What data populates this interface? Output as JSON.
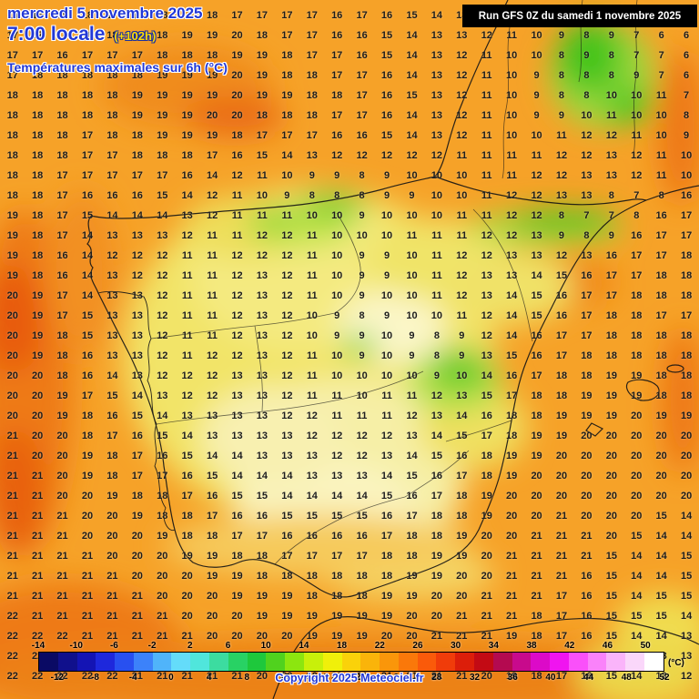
{
  "header": {
    "date_line": "mercredi 5 novembre 2025",
    "time_line": "7:00 locale",
    "offset_label": "(+102h)",
    "subtitle": "Températures maximales sur 6h (°C)",
    "run_info": "Run GFS 0Z du samedi 1 novembre 2025"
  },
  "footer": {
    "copyright": "Copyright 2025 Meteociel.fr",
    "unit_label": "(°C)"
  },
  "colorbar": {
    "min": -14,
    "max": 52,
    "top_ticks": [
      -14,
      -10,
      -6,
      -2,
      2,
      6,
      10,
      14,
      18,
      22,
      26,
      30,
      34,
      38,
      42,
      46,
      50
    ],
    "bottom_ticks": [
      -12,
      -8,
      -4,
      0,
      4,
      8,
      12,
      16,
      20,
      24,
      28,
      32,
      36,
      40,
      44,
      48,
      52
    ],
    "colors": [
      "#0a0a64",
      "#10108c",
      "#1414b4",
      "#1e28dc",
      "#2850f0",
      "#3c82fa",
      "#50b4fa",
      "#64dcfa",
      "#50e6dc",
      "#3cdca0",
      "#28d264",
      "#1ec83c",
      "#50d21e",
      "#8ce60f",
      "#c8f00a",
      "#f0f00a",
      "#fad20a",
      "#fab40a",
      "#fa960a",
      "#fa780a",
      "#fa5a0a",
      "#f03c0a",
      "#dc1e0a",
      "#c30a14",
      "#b40a50",
      "#c80a8c",
      "#dc0ac8",
      "#f014f0",
      "#fa50fa",
      "#fa82fa",
      "#fab4fa",
      "#fad7fa",
      "#ffffff"
    ]
  },
  "map": {
    "rows_y_start": 17,
    "row_step": 22,
    "cols": 28,
    "grid": [
      "18 18 18 18 17 18 18 19 18 17 17 17 17 16 17 16 15 14 13 13 12 11 10 9 8 8 7 6",
      "17 17 18 18 18 18 18 19 19 20 18 17 17 16 16 15 14 13 13 12 11 10 9 8 9 7 6 6",
      "17 17 16 17 17 17 18 18 18 19 19 18 17 17 16 15 14 13 12 11 10 10 8 9 8 7 7 6",
      "17 18 18 18 18 18 19 19 19 20 19 18 18 17 17 16 14 13 12 11 10 9 8 8 8 9 7 6",
      "18 18 18 18 18 19 19 19 19 20 19 19 18 18 17 16 15 13 12 11 10 9 8 8 10 10 11 7",
      "18 18 18 18 18 19 19 19 20 20 18 18 18 17 17 16 14 13 12 11 10 9 9 10 11 10 10 8",
      "18 18 18 17 18 18 19 19 19 18 17 17 17 16 16 15 14 13 12 11 10 10 11 12 12 11 10 9",
      "18 18 18 17 17 18 18 18 17 16 15 14 13 12 12 12 12 12 11 11 11 11 12 12 13 12 11 10",
      "18 18 17 17 17 17 17 16 14 12 11 10 9 9 8 9 10 10 10 11 11 12 12 13 13 12 11 10",
      "18 18 17 16 16 16 15 14 12 11 10 9 8 8 8 9 9 10 10 11 12 12 13 13 8 7 8 16",
      "19 18 17 15 14 14 14 13 12 11 11 11 10 10 9 10 10 10 11 11 12 12 8 7 7 8 16 17",
      "19 18 17 14 13 13 13 12 11 11 12 12 11 10 10 10 11 11 11 12 12 13 9 8 9 16 17 17",
      "19 18 16 14 12 12 12 11 11 12 12 12 11 10 9 9 10 11 12 12 13 13 12 13 16 17 17 18",
      "19 18 16 14 13 12 12 11 11 12 13 12 11 10 9 9 10 11 12 13 13 14 15 16 17 17 18 18",
      "20 19 17 14 13 13 12 11 11 12 13 12 11 10 9 10 10 11 12 13 14 15 16 17 17 18 18 18",
      "20 19 17 15 13 13 12 11 11 12 13 12 10 9 8 9 10 10 11 12 14 15 16 17 18 18 17 17",
      "20 19 18 15 13 13 12 11 11 12 13 12 10 9 9 10 9 8 9 12 14 16 17 17 18 18 18 18",
      "20 19 18 16 13 13 12 11 12 12 13 12 11 10 9 10 9 8 9 13 15 16 17 18 18 18 18 18",
      "20 20 18 16 14 13 12 12 12 13 13 12 11 10 10 10 10 9 10 14 16 17 18 18 19 19 18 18",
      "20 20 19 17 15 14 13 12 12 13 13 12 11 11 10 11 11 12 13 15 17 18 18 19 19 19 18 18",
      "20 20 19 18 16 15 14 13 13 13 13 12 12 11 11 11 12 13 14 16 18 18 19 19 19 20 19 19",
      "21 20 20 18 17 16 15 14 13 13 13 13 12 12 12 12 13 14 15 17 18 19 19 20 20 20 20 20",
      "21 20 20 19 18 17 16 15 14 14 13 13 13 12 12 13 14 15 16 18 19 19 20 20 20 20 20 20",
      "21 21 20 19 18 17 17 16 15 14 14 14 13 13 13 14 15 16 17 18 19 20 20 20 20 20 20 20",
      "21 21 20 20 19 18 18 17 16 15 15 14 14 14 14 15 16 17 18 19 20 20 20 20 20 20 20 20",
      "21 21 21 20 20 19 18 18 17 16 16 15 15 15 15 16 17 18 18 19 20 20 21 20 20 20 15 14",
      "21 21 21 20 20 20 19 18 18 17 17 16 16 16 16 17 18 18 19 20 20 21 21 21 20 15 14 14",
      "21 21 21 21 20 20 20 19 19 18 18 17 17 17 17 18 18 19 19 20 21 21 21 21 15 14 14 15",
      "21 21 21 21 21 20 20 20 19 19 18 18 18 18 18 18 19 19 20 20 21 21 21 16 15 14 14 15",
      "21 21 21 21 21 21 20 20 20 19 19 19 18 18 18 19 19 20 20 21 21 21 17 16 15 14 15 15",
      "22 21 21 21 21 21 21 20 20 20 19 19 19 19 19 19 20 20 21 21 21 18 17 16 15 15 15 14",
      "22 22 22 21 21 21 21 21 20 20 20 20 19 19 19 20 20 21 21 21 19 18 17 16 15 14 14 13",
      "22 22 22 22 21 21 21 21 21 20 20 20 20 20 20 20 21 21 21 20 19 18 17 16 15 14 13 13",
      "22 22 22 22 22 21 21 21 21 21 20 20 20 20 20 21 21 21 21 20 19 18 17 16 15 14 13 12"
    ]
  }
}
